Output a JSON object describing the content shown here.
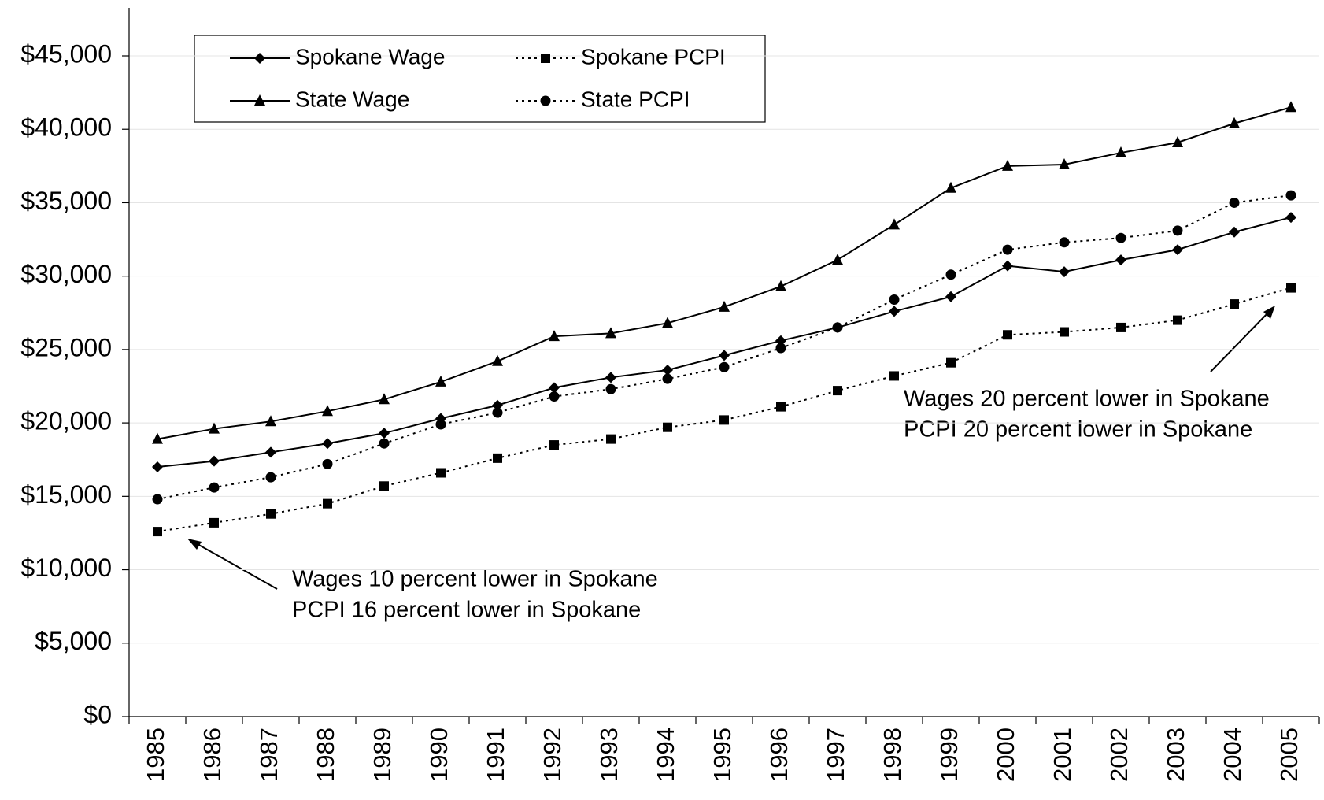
{
  "chart_data": {
    "type": "line",
    "categories": [
      "1985",
      "1986",
      "1987",
      "1988",
      "1989",
      "1990",
      "1991",
      "1992",
      "1993",
      "1994",
      "1995",
      "1996",
      "1997",
      "1998",
      "1999",
      "2000",
      "2001",
      "2002",
      "2003",
      "2004",
      "2005"
    ],
    "series": [
      {
        "name": "Spokane Wage",
        "color": "#000000",
        "dashed": false,
        "marker": "diamond",
        "values": [
          17000,
          17400,
          18000,
          18600,
          19300,
          20300,
          21200,
          22400,
          23100,
          23600,
          24600,
          25600,
          26500,
          27600,
          28600,
          30700,
          30300,
          31100,
          31800,
          33000,
          34000
        ]
      },
      {
        "name": "Spokane PCPI",
        "color": "#000000",
        "dashed": true,
        "marker": "square",
        "values": [
          12600,
          13200,
          13800,
          14500,
          15700,
          16600,
          17600,
          18500,
          18900,
          19700,
          20200,
          21100,
          22200,
          23200,
          24100,
          26000,
          26200,
          26500,
          27000,
          28100,
          29200
        ]
      },
      {
        "name": "State Wage",
        "color": "#000000",
        "dashed": false,
        "marker": "triangle",
        "values": [
          18900,
          19600,
          20100,
          20800,
          21600,
          22800,
          24200,
          25900,
          26100,
          26800,
          27900,
          29300,
          31100,
          33500,
          36000,
          37500,
          37600,
          38400,
          39100,
          40400,
          41500
        ]
      },
      {
        "name": "State PCPI",
        "color": "#000000",
        "dashed": true,
        "marker": "circle",
        "values": [
          14800,
          15600,
          16300,
          17200,
          18600,
          19900,
          20700,
          21800,
          22300,
          23000,
          23800,
          25100,
          26500,
          28400,
          30100,
          31800,
          32300,
          32600,
          33100,
          35000,
          35500
        ]
      }
    ],
    "ylim": [
      0,
      45000
    ],
    "yticks": [
      {
        "value": 0,
        "label": "$0"
      },
      {
        "value": 5000,
        "label": "$5,000"
      },
      {
        "value": 10000,
        "label": "$10,000"
      },
      {
        "value": 15000,
        "label": "$15,000"
      },
      {
        "value": 20000,
        "label": "$20,000"
      },
      {
        "value": 25000,
        "label": "$25,000"
      },
      {
        "value": 30000,
        "label": "$30,000"
      },
      {
        "value": 35000,
        "label": "$35,000"
      },
      {
        "value": 40000,
        "label": "$40,000"
      },
      {
        "value": 45000,
        "label": "$45,000"
      }
    ],
    "grid": true,
    "legend": "top-left",
    "annotations": [
      {
        "lines": [
          "Wages 10 percent lower in Spokane",
          "PCPI 16 percent lower in Spokane"
        ]
      },
      {
        "lines": [
          "Wages 20 percent lower in Spokane",
          "PCPI 20 percent lower in Spokane"
        ]
      }
    ]
  }
}
